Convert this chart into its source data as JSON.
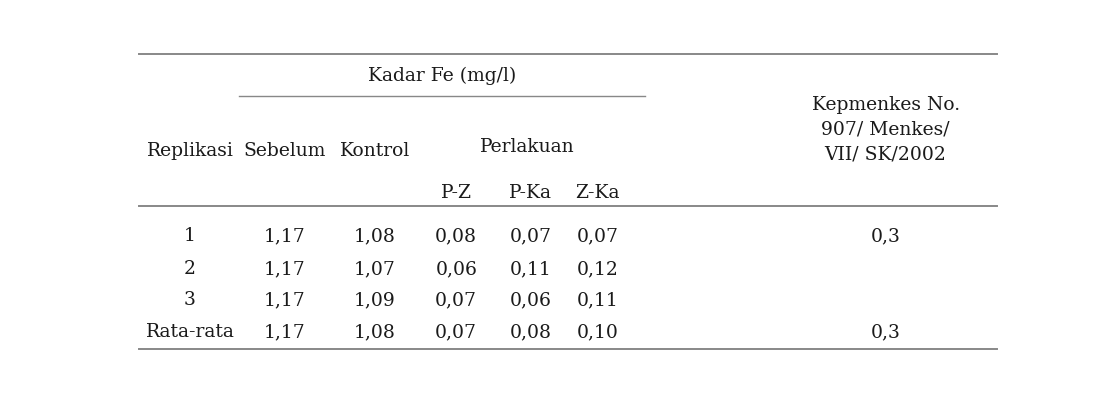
{
  "kadar_fe_header": "Kadar Fe (mg/l)",
  "perlakuan_header": "Perlakuan",
  "kepmenkes_header": "Kepmenkes No.\n907/ Menkes/\nVII/ SK/2002",
  "rows": [
    [
      "1",
      "1,17",
      "1,08",
      "0,08",
      "0,07",
      "0,07",
      "0,3"
    ],
    [
      "2",
      "1,17",
      "1,07",
      "0,06",
      "0,11",
      "0,12",
      ""
    ],
    [
      "3",
      "1,17",
      "1,09",
      "0,07",
      "0,06",
      "0,11",
      ""
    ],
    [
      "Rata-rata",
      "1,17",
      "1,08",
      "0,07",
      "0,08",
      "0,10",
      "0,3"
    ]
  ],
  "bg_color": "#ffffff",
  "text_color": "#1a1a1a",
  "line_color": "#888888",
  "font_size": 13.5
}
